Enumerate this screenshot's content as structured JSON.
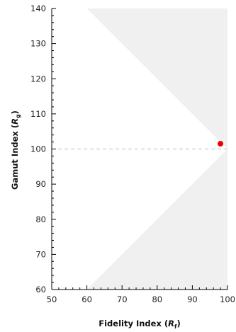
{
  "chart_data": {
    "type": "scatter",
    "title": "",
    "xlabel": {
      "main": "Fidelity Index (",
      "italic": "R",
      "sub": "f",
      "close": ")"
    },
    "ylabel": {
      "main": "Gamut Index (",
      "italic": "R",
      "sub": "g",
      "close": ")"
    },
    "xlim": [
      50,
      100
    ],
    "ylim": [
      60,
      140
    ],
    "xticks": [
      50,
      60,
      70,
      80,
      90,
      100
    ],
    "yticks": [
      60,
      70,
      80,
      90,
      100,
      110,
      120,
      130,
      140
    ],
    "xminor_step": 2,
    "yminor_step": 2,
    "grid": false,
    "reference_line": {
      "y": 100,
      "style": "dashed",
      "color": "#bbbbbb"
    },
    "shaded_regions": {
      "color": "#f0f0f0",
      "upper": [
        [
          60,
          140
        ],
        [
          100,
          100
        ],
        [
          100,
          140
        ]
      ],
      "lower": [
        [
          60,
          60
        ],
        [
          100,
          100
        ],
        [
          100,
          60
        ]
      ]
    },
    "series": [
      {
        "x": [
          98
        ],
        "y": [
          101.5
        ],
        "color": "#ee0000"
      }
    ]
  }
}
